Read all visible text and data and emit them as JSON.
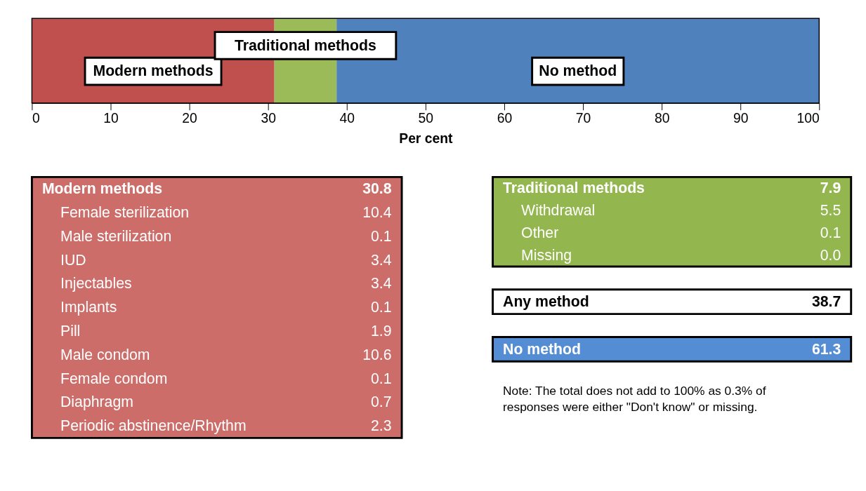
{
  "chart_data": [
    {
      "type": "bar",
      "orientation": "horizontal",
      "stacked": true,
      "categories": [
        null
      ],
      "xlim": [
        0,
        100
      ],
      "xticks": [
        0,
        10,
        20,
        30,
        40,
        50,
        60,
        70,
        80,
        90,
        100
      ],
      "xlabel": "Per cent",
      "tick_labels": "x",
      "grid": false,
      "series": [
        {
          "name": "Modern methods",
          "color": "#c0504d",
          "values": [
            30.8
          ]
        },
        {
          "name": "Traditional methods",
          "color": "#9bbb59",
          "values": [
            7.9
          ]
        },
        {
          "name": "No method",
          "color": "#4f81bd",
          "values": [
            61.3
          ]
        }
      ]
    },
    {
      "type": "other",
      "color": "#cd6d6a",
      "categories": [
        "Modern methods",
        "Female sterilization",
        "Male sterilization",
        "IUD",
        "Injectables",
        "Implants",
        "Pill",
        "Male condom",
        "Female condom",
        "Diaphragm",
        "Periodic abstinence/Rhythm"
      ],
      "value_labels": [
        "30.8",
        "10.4",
        "0.1",
        "3.4",
        "3.4",
        "0.1",
        "1.9",
        "10.6",
        "0.1",
        "0.7",
        "2.3"
      ]
    },
    {
      "type": "other",
      "color": "#93b64f",
      "categories": [
        "Traditional methods",
        "Withdrawal",
        "Other",
        "Missing"
      ],
      "value_labels": [
        "7.9",
        "5.5",
        "0.1",
        "0.0"
      ]
    },
    {
      "type": "other",
      "color": "#ffffff",
      "categories": [
        "Any method"
      ],
      "value_labels": [
        "38.7"
      ]
    },
    {
      "type": "other",
      "color": "#548dd4",
      "categories": [
        "No method"
      ],
      "value_labels": [
        "61.3"
      ]
    },
    {
      "type": "other",
      "annotations": [
        "Note: The total does not add to 100% as 0.3% of",
        "responses were either \"Don't know\" or missing."
      ]
    }
  ]
}
